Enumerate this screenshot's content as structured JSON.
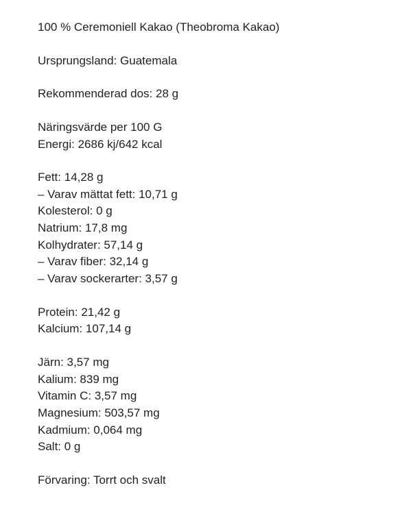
{
  "title": "100 % Ceremoniell Kakao (Theobroma Kakao)",
  "origin": {
    "label": "Ursprungsland",
    "value": "Guatemala"
  },
  "dose": {
    "label": "Rekommenderad dos",
    "value": "28 g"
  },
  "nutrition_header": {
    "title": "Näringsvärde per 100 G",
    "energy_label": "Energi",
    "energy_value": "2686 kj/642 kcal"
  },
  "group1": {
    "fat_label": "Fett",
    "fat_value": "14,28 g",
    "sat_fat_label": "– Varav mättat fett",
    "sat_fat_value": "10,71 g",
    "cholesterol_label": "Kolesterol",
    "cholesterol_value": "0 g",
    "sodium_label": "Natrium",
    "sodium_value": "17,8 mg",
    "carbs_label": "Kolhydrater",
    "carbs_value": "57,14 g",
    "fiber_label": "– Varav fiber",
    "fiber_value": "32,14 g",
    "sugars_label": "– Varav sockerarter",
    "sugars_value": "3,57 g"
  },
  "group2": {
    "protein_label": "Protein",
    "protein_value": "21,42 g",
    "calcium_label": "Kalcium",
    "calcium_value": "107,14 g"
  },
  "group3": {
    "iron_label": "Järn",
    "iron_value": "3,57 mg",
    "potassium_label": "Kalium",
    "potassium_value": "839 mg",
    "vitc_label": "Vitamin C",
    "vitc_value": "3,57 mg",
    "magnesium_label": "Magnesium",
    "magnesium_value": "503,57 mg",
    "cadmium_label": "Kadmium",
    "cadmium_value": "0,064 mg",
    "salt_label": "Salt",
    "salt_value": "0 g"
  },
  "storage": {
    "label": "Förvaring",
    "value": "Torrt och svalt"
  }
}
